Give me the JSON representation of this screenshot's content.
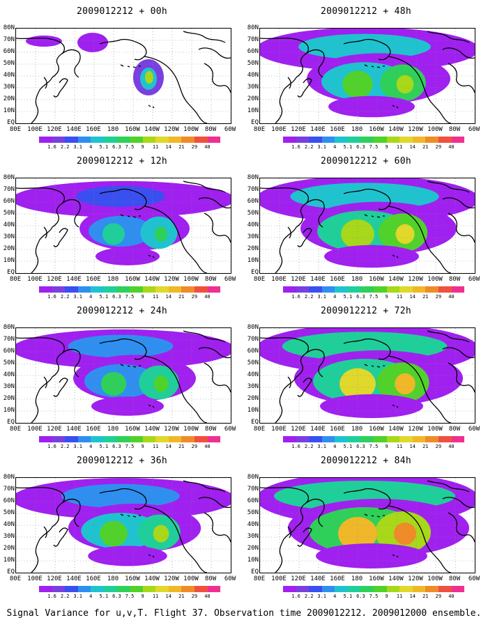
{
  "panels": [
    {
      "title": "2009012212 + 00h",
      "lead_hours": 0,
      "intensity": 0.0
    },
    {
      "title": "2009012212 + 48h",
      "lead_hours": 48,
      "intensity": 0.55
    },
    {
      "title": "2009012212 + 12h",
      "lead_hours": 12,
      "intensity": 0.15
    },
    {
      "title": "2009012212 + 60h",
      "lead_hours": 60,
      "intensity": 0.7
    },
    {
      "title": "2009012212 + 24h",
      "lead_hours": 24,
      "intensity": 0.3
    },
    {
      "title": "2009012212 + 72h",
      "lead_hours": 72,
      "intensity": 0.85
    },
    {
      "title": "2009012212 + 36h",
      "lead_hours": 36,
      "intensity": 0.42
    },
    {
      "title": "2009012212 + 84h",
      "lead_hours": 84,
      "intensity": 1.0
    }
  ],
  "lat_labels": [
    "80N",
    "70N",
    "60N",
    "50N",
    "40N",
    "30N",
    "20N",
    "10N",
    "EQ"
  ],
  "lon_labels": [
    "80E",
    "100E",
    "120E",
    "140E",
    "160E",
    "180",
    "160W",
    "140W",
    "120W",
    "100W",
    "80W",
    "60W"
  ],
  "colorbar": {
    "labels": [
      "1.6",
      "2.2",
      "3.1",
      "4",
      "5.1",
      "6.3",
      "7.5",
      "9",
      "11",
      "14",
      "21",
      "29",
      "40"
    ],
    "colors": [
      "#a020f0",
      "#7a3fe0",
      "#3a4ff0",
      "#2f8ff0",
      "#1fc3d0",
      "#1fcf9a",
      "#2fd05a",
      "#50d22a",
      "#a8d81a",
      "#e0d82a",
      "#f0b828",
      "#f08c28",
      "#f05040",
      "#f03090"
    ]
  },
  "footer": "Signal Variance for u,v,T. Flight 37. Observation time 2009012212. 2009012000 ensemble."
}
